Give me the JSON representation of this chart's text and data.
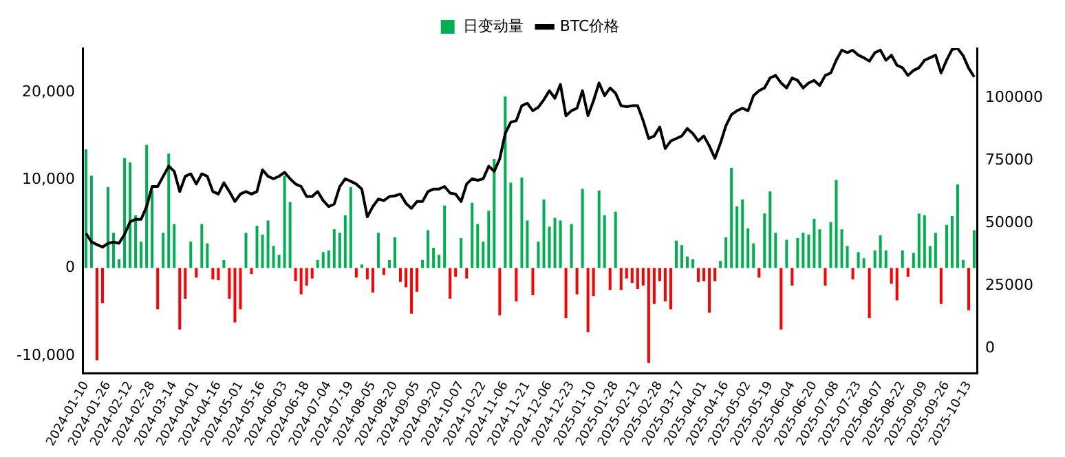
{
  "chart_data": {
    "type": "bar",
    "legend": "top",
    "grid": false,
    "marker": "none",
    "categories": [
      "2024-01-10",
      null,
      null,
      null,
      "2024-01-26",
      null,
      null,
      null,
      "2024-02-12",
      null,
      null,
      null,
      "2024-02-28",
      null,
      null,
      null,
      "2024-03-14",
      null,
      null,
      null,
      "2024-04-01",
      null,
      null,
      null,
      "2024-04-16",
      null,
      null,
      null,
      "2024-05-01",
      null,
      null,
      null,
      "2024-05-16",
      null,
      null,
      null,
      "2024-06-03",
      null,
      null,
      null,
      "2024-06-18",
      null,
      null,
      null,
      "2024-07-04",
      null,
      null,
      null,
      "2024-07-19",
      null,
      null,
      null,
      "2024-08-05",
      null,
      null,
      null,
      "2024-08-20",
      null,
      null,
      null,
      "2024-09-05",
      null,
      null,
      null,
      "2024-09-20",
      null,
      null,
      null,
      "2024-10-07",
      null,
      null,
      null,
      "2024-10-22",
      null,
      null,
      null,
      "2024-11-06",
      null,
      null,
      null,
      "2024-11-21",
      null,
      null,
      null,
      "2024-12-06",
      null,
      null,
      null,
      "2024-12-23",
      null,
      null,
      null,
      "2025-01-10",
      null,
      null,
      null,
      "2025-01-28",
      null,
      null,
      null,
      "2025-02-12",
      null,
      null,
      null,
      "2025-02-28",
      null,
      null,
      null,
      "2025-03-17",
      null,
      null,
      null,
      "2025-04-01",
      null,
      null,
      null,
      "2025-04-16",
      null,
      null,
      null,
      "2025-05-02",
      null,
      null,
      null,
      "2025-05-19",
      null,
      null,
      null,
      "2025-06-04",
      null,
      null,
      null,
      "2025-06-20",
      null,
      null,
      null,
      "2025-07-08",
      null,
      null,
      null,
      "2025-07-23",
      null,
      null,
      null,
      "2025-08-07",
      null,
      null,
      null,
      "2025-08-22",
      null,
      null,
      null,
      "2025-09-09",
      null,
      null,
      null,
      "2025-09-26",
      null,
      null,
      null,
      "2025-10-13",
      null
    ],
    "ylim": [
      -12000,
      25000
    ],
    "yticks": [
      {
        "value": -10000,
        "label": "-10,000"
      },
      0,
      {
        "value": 10000,
        "label": "10,000"
      },
      {
        "value": 20000,
        "label": "20,000"
      }
    ],
    "y2lim": [
      -10000,
      120000
    ],
    "y2ticks": [
      0,
      25000,
      50000,
      75000,
      100000
    ],
    "series": [
      {
        "name": "日变动量",
        "color": "#00b050",
        "values": [
          13500,
          10500,
          -10500,
          -4000,
          9200,
          4000,
          1000,
          12500,
          12000,
          6000,
          3000,
          14000,
          8800,
          -4700,
          4000,
          13000,
          5000,
          -7000,
          -3500,
          3000,
          -1100,
          5000,
          2800,
          -1300,
          -1400,
          900,
          -3500,
          -6200,
          -4700,
          4000,
          -700,
          4800,
          3800,
          5400,
          2500,
          1500,
          10500,
          7500,
          -1500,
          -3000,
          -2000,
          -1200,
          900,
          1800,
          2000,
          4400,
          4000,
          6000,
          9200,
          -1100,
          400,
          -1300,
          -2800,
          4000,
          -800,
          900,
          3500,
          -1600,
          -2200,
          -5200,
          -2700,
          900,
          4300,
          2300,
          1500,
          7100,
          -3500,
          -1000,
          3400,
          -1200,
          7400,
          5000,
          3000,
          6500,
          12400,
          -5400,
          19500,
          9700,
          -3800,
          10300,
          5400,
          -3100,
          3000,
          7800,
          4700,
          5700,
          5400,
          -5700,
          5000,
          -3000,
          9000,
          -7300,
          -3200,
          8800,
          6000,
          -2500,
          6400,
          -2500,
          -1200,
          -1700,
          -2400,
          -2000,
          -10800,
          -4100,
          -1500,
          -3800,
          -4700,
          3100,
          2600,
          1300,
          1000,
          -1600,
          -1500,
          -5100,
          -1500,
          800,
          3500,
          11400,
          7000,
          7800,
          4500,
          2800,
          -1100,
          6200,
          8700,
          4000,
          -7000,
          3200,
          -2000,
          3400,
          4000,
          3800,
          5600,
          4400,
          -2000,
          5200,
          10000,
          4400,
          2500,
          -1300,
          1800,
          1100,
          -5700,
          2000,
          3700,
          2000,
          -1800,
          -3700,
          2000,
          -1000,
          1700,
          6200,
          6000,
          2500,
          4000,
          -4100,
          4900,
          5900,
          9500,
          900,
          -4800,
          4300
        ],
        "colors": [
          "#00b050",
          "#00b050",
          "#ff0000",
          "#ff0000",
          "#00b050",
          "#00b050",
          "#00b050",
          "#00b050",
          "#00b050",
          "#00b050",
          "#00b050",
          "#00b050",
          "#00b050",
          "#ff0000",
          "#00b050",
          "#00b050",
          "#00b050",
          "#ff0000",
          "#ff0000",
          "#00b050",
          "#ff0000",
          "#00b050",
          "#00b050",
          "#ff0000",
          "#ff0000",
          "#00b050",
          "#ff0000",
          "#ff0000",
          "#ff0000",
          "#00b050",
          "#ff0000",
          "#00b050",
          "#00b050",
          "#00b050",
          "#00b050",
          "#00b050",
          "#00b050",
          "#00b050",
          "#ff0000",
          "#ff0000",
          "#ff0000",
          "#ff0000",
          "#00b050",
          "#00b050",
          "#00b050",
          "#00b050",
          "#00b050",
          "#00b050",
          "#00b050",
          "#ff0000",
          "#00b050",
          "#ff0000",
          "#ff0000",
          "#00b050",
          "#ff0000",
          "#00b050",
          "#00b050",
          "#ff0000",
          "#ff0000",
          "#ff0000",
          "#ff0000",
          "#00b050",
          "#00b050",
          "#00b050",
          "#00b050",
          "#00b050",
          "#ff0000",
          "#ff0000",
          "#00b050",
          "#ff0000",
          "#00b050",
          "#00b050",
          "#00b050",
          "#00b050",
          "#00b050",
          "#ff0000",
          "#00b050",
          "#00b050",
          "#ff0000",
          "#00b050",
          "#00b050",
          "#ff0000",
          "#00b050",
          "#00b050",
          "#00b050",
          "#00b050",
          "#00b050",
          "#ff0000",
          "#00b050",
          "#ff0000",
          "#00b050",
          "#ff0000",
          "#ff0000",
          "#00b050",
          "#00b050",
          "#ff0000",
          "#00b050",
          "#ff0000",
          "#ff0000",
          "#ff0000",
          "#ff0000",
          "#ff0000",
          "#ff0000",
          "#ff0000",
          "#ff0000",
          "#ff0000",
          "#ff0000",
          "#00b050",
          "#00b050",
          "#00b050",
          "#00b050",
          "#ff0000",
          "#ff0000",
          "#ff0000",
          "#ff0000",
          "#00b050",
          "#00b050",
          "#00b050",
          "#00b050",
          "#00b050",
          "#00b050",
          "#00b050",
          "#ff0000",
          "#00b050",
          "#00b050",
          "#00b050",
          "#ff0000",
          "#00b050",
          "#ff0000",
          "#00b050",
          "#00b050",
          "#00b050",
          "#00b050",
          "#00b050",
          "#ff0000",
          "#00b050",
          "#00b050",
          "#00b050",
          "#00b050",
          "#ff0000",
          "#00b050",
          "#00b050",
          "#ff0000",
          "#00b050",
          "#00b050",
          "#00b050",
          "#ff0000",
          "#ff0000",
          "#00b050",
          "#ff0000",
          "#00b050",
          "#00b050",
          "#00b050",
          "#00b050",
          "#00b050",
          "#ff0000",
          "#00b050",
          "#00b050",
          "#00b050",
          "#00b050",
          "#ff0000",
          "#00b050"
        ]
      },
      {
        "name": "BTC价格",
        "type": "line",
        "axis": "y2",
        "color": "#000000",
        "line_style": "solid",
        "values": [
          46000,
          42600,
          41500,
          40500,
          42000,
          42500,
          42000,
          45600,
          50600,
          51600,
          51600,
          56700,
          64700,
          64700,
          68800,
          72800,
          70800,
          62700,
          68800,
          69800,
          65700,
          69800,
          68800,
          62700,
          61700,
          66200,
          62700,
          58700,
          61700,
          62700,
          61700,
          62700,
          71400,
          68800,
          67800,
          68800,
          70400,
          67800,
          65700,
          64700,
          60700,
          60700,
          62700,
          59100,
          56700,
          57700,
          64700,
          67800,
          66800,
          65700,
          63700,
          52600,
          56700,
          59700,
          59100,
          60700,
          61000,
          61700,
          58000,
          56000,
          58700,
          58700,
          62700,
          63700,
          63700,
          64700,
          62100,
          61700,
          58700,
          65700,
          67800,
          67200,
          67800,
          72800,
          70800,
          75800,
          85900,
          90400,
          91000,
          97000,
          98000,
          95000,
          96400,
          99400,
          103000,
          100000,
          105500,
          93000,
          95000,
          96000,
          103000,
          93000,
          99000,
          106100,
          101000,
          104100,
          102000,
          97000,
          96600,
          97000,
          97000,
          91000,
          83900,
          84900,
          88500,
          79900,
          82900,
          83900,
          84900,
          87900,
          85900,
          82900,
          84900,
          80900,
          76000,
          82000,
          89000,
          93400,
          95000,
          96000,
          95000,
          101000,
          103000,
          104100,
          108100,
          109100,
          106100,
          104100,
          108100,
          107100,
          104100,
          106100,
          107100,
          105100,
          109100,
          110100,
          115200,
          119200,
          118200,
          119200,
          117200,
          116200,
          114800,
          118200,
          119200,
          115200,
          117200,
          113200,
          112200,
          109100,
          111100,
          112200,
          115200,
          116200,
          117200,
          110100,
          115200,
          119500,
          119900,
          117000,
          112000,
          108500
        ]
      }
    ]
  }
}
